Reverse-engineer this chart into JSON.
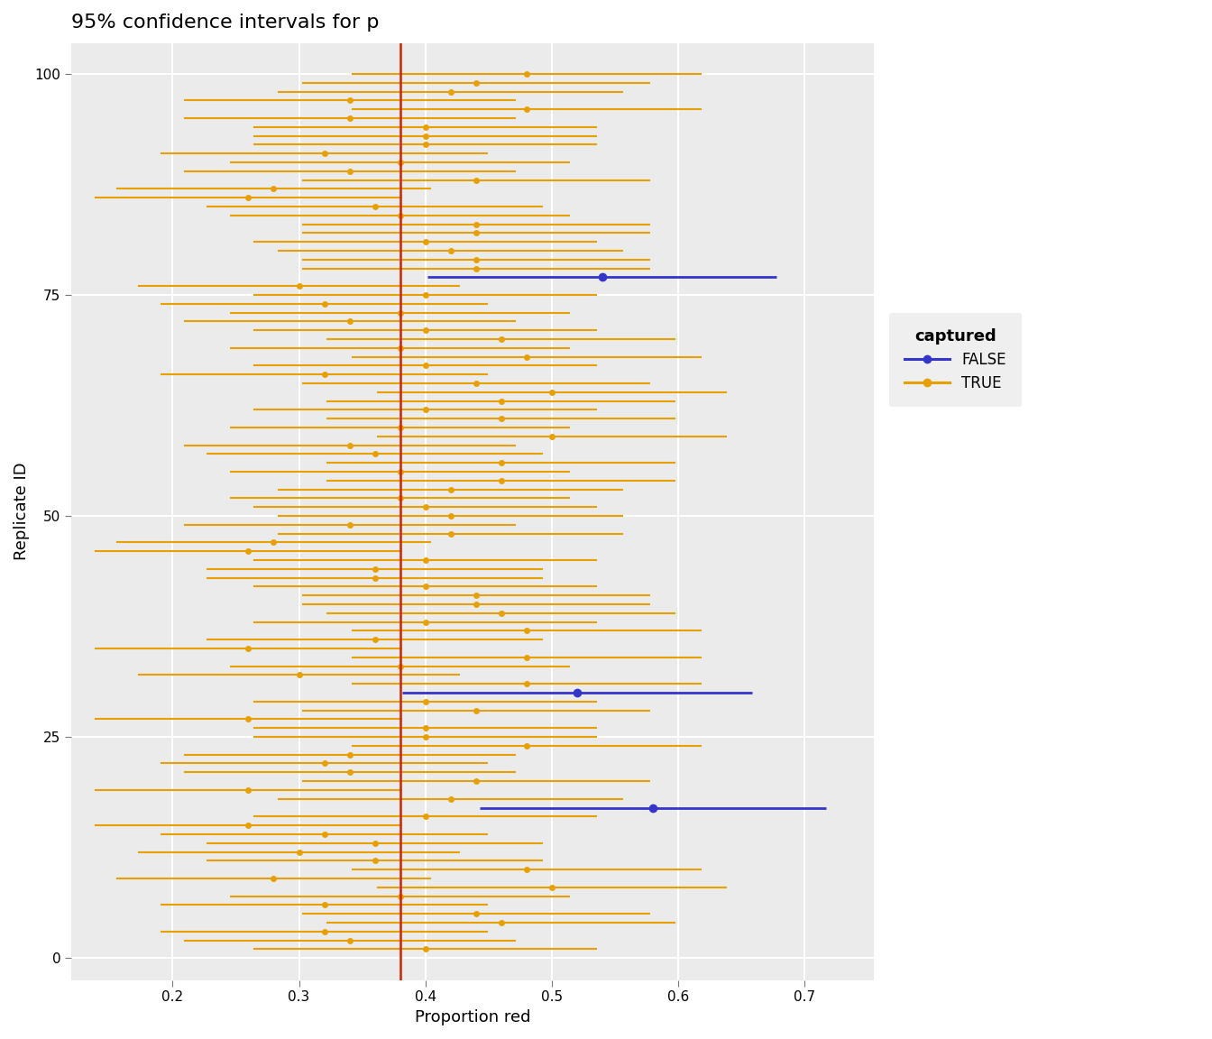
{
  "title": "95% confidence intervals for p",
  "xlabel": "Proportion red",
  "ylabel": "Replicate ID",
  "true_p": 0.38,
  "n": 50,
  "num_samples": 100,
  "seed": 112,
  "color_false": "#3535CC",
  "color_true": "#E8A000",
  "vline_color": "#CC2200",
  "bg_color": "#EBEBEB",
  "grid_color": "#FFFFFF",
  "xlim": [
    0.12,
    0.755
  ],
  "ylim": [
    -2.5,
    103.5
  ],
  "xticks": [
    0.2,
    0.3,
    0.4,
    0.5,
    0.6,
    0.7
  ],
  "yticks": [
    0,
    25,
    50,
    75,
    100
  ],
  "legend_title": "captured",
  "title_fontsize": 16,
  "axis_label_fontsize": 13,
  "tick_fontsize": 11,
  "legend_fontsize": 12
}
